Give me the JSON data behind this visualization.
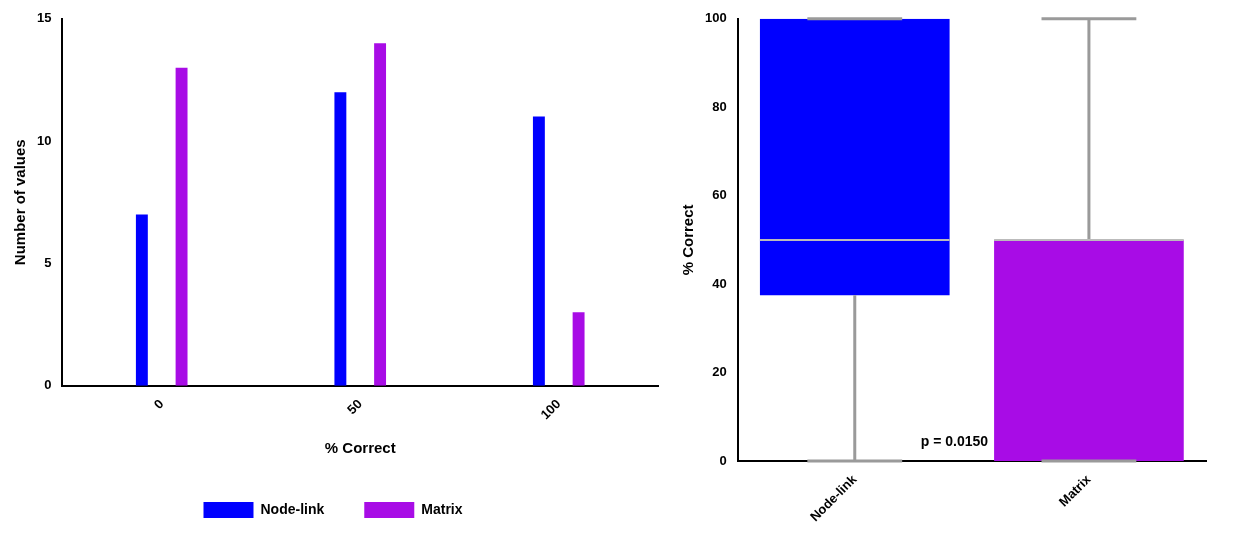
{
  "chart_data": [
    {
      "type": "bar",
      "categories": [
        "0",
        "50",
        "100"
      ],
      "xlabel": "% Correct",
      "ylabel": "Number of values",
      "ylim": [
        0,
        15
      ],
      "yticks": [
        0,
        5,
        10,
        15
      ],
      "grid": false,
      "legend": "bottom",
      "series": [
        {
          "name": "Node-link",
          "color": "#0000ff",
          "values": [
            7,
            12,
            11
          ]
        },
        {
          "name": "Matrix",
          "color": "#a80ce6",
          "values": [
            13,
            14,
            3
          ]
        }
      ]
    },
    {
      "type": "box",
      "categories": [
        "Node-link",
        "Matrix"
      ],
      "ylabel": "% Correct",
      "ylim": [
        0,
        100
      ],
      "yticks": [
        0,
        20,
        40,
        60,
        80,
        100
      ],
      "grid": false,
      "colors": [
        "#0000ff",
        "#a80ce6"
      ],
      "boxes": [
        {
          "low": 0,
          "q1": 37.5,
          "median": 50,
          "q3": 100,
          "high": 100
        },
        {
          "low": 0,
          "q1": 0,
          "median": 50,
          "q3": 50,
          "high": 100
        }
      ],
      "annotations": [
        "p = 0.0150"
      ]
    }
  ]
}
